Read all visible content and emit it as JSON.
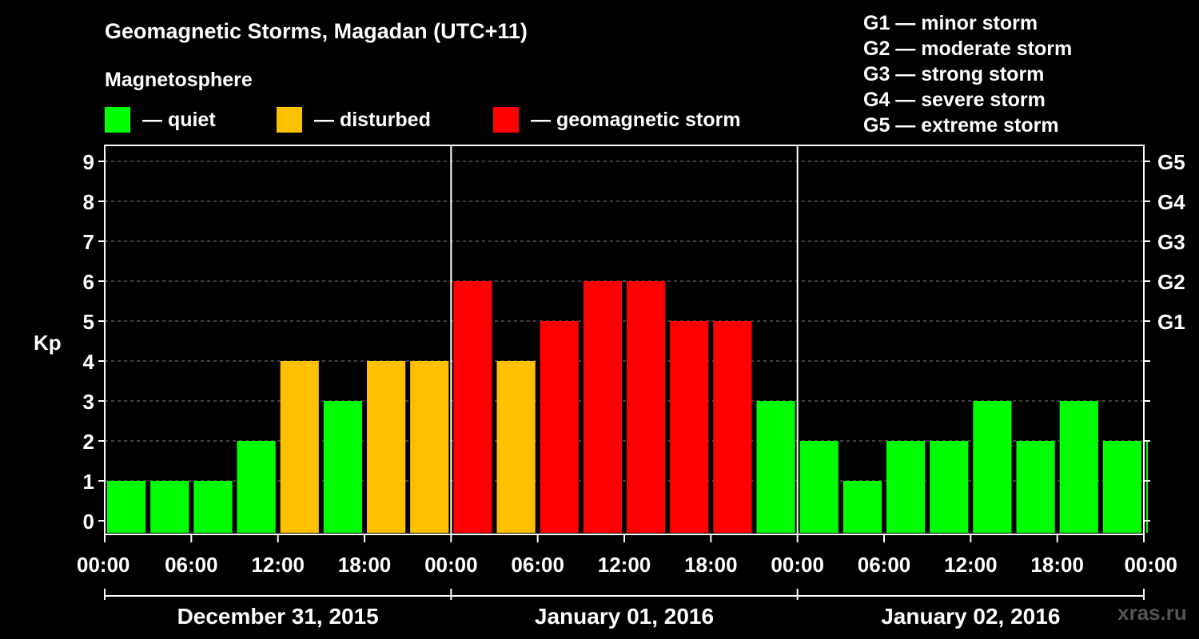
{
  "header": {
    "title": "Geomagnetic Storms, Magadan (UTC+11)",
    "magnetosphere_label": "Magnetosphere"
  },
  "legend": [
    {
      "label": "— quiet",
      "color": "#00ff00"
    },
    {
      "label": "— disturbed",
      "color": "#ffc000"
    },
    {
      "label": "— geomagnetic storm",
      "color": "#ff0000"
    }
  ],
  "storm_levels": [
    "G1 — minor storm",
    "G2 — moderate storm",
    "G3 — strong storm",
    "G4 — severe storm",
    "G5 — extreme storm"
  ],
  "watermark": "xras.ru",
  "colors": {
    "quiet": "#00ff00",
    "disturbed": "#ffc000",
    "storm": "#ff0000",
    "background": "#000000",
    "grid": "#808080"
  },
  "chart_data": {
    "type": "bar",
    "title": "Geomagnetic Storms, Magadan (UTC+11)",
    "ylabel": "Kp",
    "ylim": [
      0,
      9
    ],
    "yticks": [
      0,
      1,
      2,
      3,
      4,
      5,
      6,
      7,
      8,
      9
    ],
    "right_axis_labels": [
      {
        "kp": 5,
        "label": "G1"
      },
      {
        "kp": 6,
        "label": "G2"
      },
      {
        "kp": 7,
        "label": "G3"
      },
      {
        "kp": 8,
        "label": "G4"
      },
      {
        "kp": 9,
        "label": "G5"
      }
    ],
    "x_hours_range": [
      0,
      72
    ],
    "x_tick_hours": [
      0,
      6,
      12,
      18,
      24,
      30,
      36,
      42,
      48,
      54,
      60,
      66,
      72
    ],
    "x_tick_labels": [
      "00:00",
      "06:00",
      "12:00",
      "18:00",
      "00:00",
      "06:00",
      "12:00",
      "18:00",
      "00:00",
      "06:00",
      "12:00",
      "18:00",
      "00:00"
    ],
    "day_boundaries_hours": [
      24,
      48
    ],
    "days": [
      {
        "label": "December 31, 2015",
        "start_hour": 0,
        "end_hour": 24
      },
      {
        "label": "January 01, 2016",
        "start_hour": 24,
        "end_hour": 48
      },
      {
        "label": "January 02, 2016",
        "start_hour": 48,
        "end_hour": 72
      }
    ],
    "bars": [
      {
        "start_hour": 0,
        "end_hour": 3,
        "kp": 1,
        "level": "quiet"
      },
      {
        "start_hour": 3,
        "end_hour": 6,
        "kp": 1,
        "level": "quiet"
      },
      {
        "start_hour": 6,
        "end_hour": 9,
        "kp": 1,
        "level": "quiet"
      },
      {
        "start_hour": 9,
        "end_hour": 12,
        "kp": 2,
        "level": "quiet"
      },
      {
        "start_hour": 12,
        "end_hour": 15,
        "kp": 4,
        "level": "disturbed"
      },
      {
        "start_hour": 15,
        "end_hour": 18,
        "kp": 3,
        "level": "quiet"
      },
      {
        "start_hour": 18,
        "end_hour": 21,
        "kp": 4,
        "level": "disturbed"
      },
      {
        "start_hour": 21,
        "end_hour": 24,
        "kp": 4,
        "level": "disturbed"
      },
      {
        "start_hour": 24,
        "end_hour": 27,
        "kp": 6,
        "level": "storm"
      },
      {
        "start_hour": 27,
        "end_hour": 30,
        "kp": 4,
        "level": "disturbed"
      },
      {
        "start_hour": 30,
        "end_hour": 33,
        "kp": 5,
        "level": "storm"
      },
      {
        "start_hour": 33,
        "end_hour": 36,
        "kp": 6,
        "level": "storm"
      },
      {
        "start_hour": 36,
        "end_hour": 39,
        "kp": 6,
        "level": "storm"
      },
      {
        "start_hour": 39,
        "end_hour": 42,
        "kp": 5,
        "level": "storm"
      },
      {
        "start_hour": 42,
        "end_hour": 45,
        "kp": 5,
        "level": "storm"
      },
      {
        "start_hour": 45,
        "end_hour": 48,
        "kp": 3,
        "level": "quiet"
      },
      {
        "start_hour": 48,
        "end_hour": 51,
        "kp": 2,
        "level": "quiet"
      },
      {
        "start_hour": 51,
        "end_hour": 54,
        "kp": 1,
        "level": "quiet"
      },
      {
        "start_hour": 54,
        "end_hour": 57,
        "kp": 2,
        "level": "quiet"
      },
      {
        "start_hour": 57,
        "end_hour": 60,
        "kp": 2,
        "level": "quiet"
      },
      {
        "start_hour": 60,
        "end_hour": 63,
        "kp": 3,
        "level": "quiet"
      },
      {
        "start_hour": 63,
        "end_hour": 66,
        "kp": 2,
        "level": "quiet"
      },
      {
        "start_hour": 66,
        "end_hour": 69,
        "kp": 3,
        "level": "quiet"
      },
      {
        "start_hour": 69,
        "end_hour": 72,
        "kp": 2,
        "level": "quiet"
      },
      {
        "start_hour": 72,
        "end_hour": 72.33,
        "kp": 2,
        "level": "quiet"
      }
    ]
  }
}
